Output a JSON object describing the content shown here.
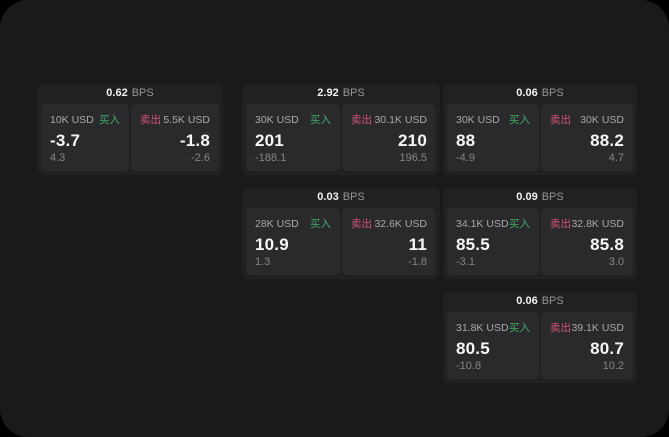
{
  "unit": "BPS",
  "side_labels": {
    "buy": "买入",
    "sell": "卖出"
  },
  "colors": {
    "app_background": "#1a1a1c",
    "card_background": "#212124",
    "panel_background": "#2a2a2d",
    "buy_green": "#3fae63",
    "sell_red": "#d4556f",
    "value_white": "#f7f7f9",
    "label_gray": "#a9a9ad",
    "sub_gray": "#86868a"
  },
  "cards": [
    {
      "bps": "0.62",
      "row": 1,
      "col": 1,
      "buy": {
        "amount": "10K USD",
        "value": "-3.7",
        "sub": "4.3"
      },
      "sell": {
        "amount": "5.5K USD",
        "value": "-1.8",
        "sub": "-2.6"
      }
    },
    {
      "bps": "2.92",
      "row": 1,
      "col": 2,
      "buy": {
        "amount": "30K USD",
        "value": "201",
        "sub": "-188.1"
      },
      "sell": {
        "amount": "30.1K USD",
        "value": "210",
        "sub": "196.5"
      }
    },
    {
      "bps": "0.06",
      "row": 1,
      "col": 3,
      "buy": {
        "amount": "30K USD",
        "value": "88",
        "sub": "-4.9"
      },
      "sell": {
        "amount": "30K USD",
        "value": "88.2",
        "sub": "4.7"
      }
    },
    {
      "bps": "0.03",
      "row": 2,
      "col": 2,
      "buy": {
        "amount": "28K USD",
        "value": "10.9",
        "sub": "1.3"
      },
      "sell": {
        "amount": "32.6K USD",
        "value": "11",
        "sub": "-1.8"
      }
    },
    {
      "bps": "0.09",
      "row": 2,
      "col": 3,
      "buy": {
        "amount": "34.1K USD",
        "value": "85.5",
        "sub": "-3.1"
      },
      "sell": {
        "amount": "32.8K USD",
        "value": "85.8",
        "sub": "3.0"
      }
    },
    {
      "bps": "0.06",
      "row": 3,
      "col": 3,
      "buy": {
        "amount": "31.8K USD",
        "value": "80.5",
        "sub": "-10.8"
      },
      "sell": {
        "amount": "39.1K USD",
        "value": "80.7",
        "sub": "10.2"
      }
    }
  ]
}
